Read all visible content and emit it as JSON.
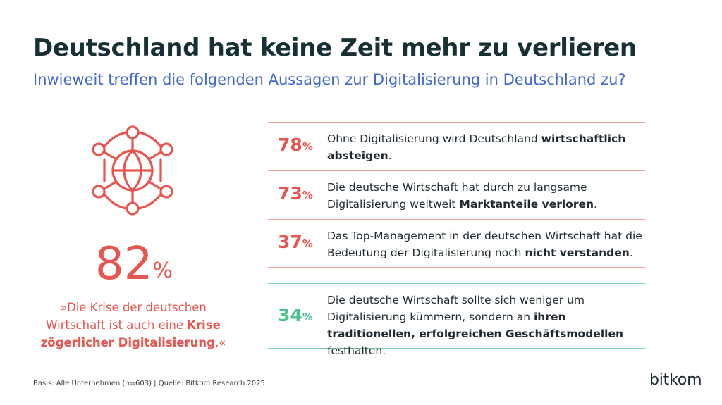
{
  "header": {
    "title": "Deutschland hat keine Zeit mehr zu verlieren",
    "subtitle": "Inwieweit treffen die folgenden Aussagen zur Digitalisierung in Deutschland zu?"
  },
  "hero": {
    "icon": "globe-network-icon",
    "value": "82",
    "unit": "%",
    "quote_1": "»Die Krise der deutschen Wirtschaft ist auch eine ",
    "quote_2": "Krise zögerlicher Digitalisierung",
    "quote_3": ".«"
  },
  "chart_data": {
    "type": "table",
    "unit": "%",
    "items": [
      {
        "value": 82,
        "text": "»Die Krise der deutschen Wirtschaft ist auch eine Krise zögerlicher Digitalisierung.«"
      },
      {
        "value": 78,
        "text": "Ohne Digitalisierung wird Deutschland wirtschaftlich absteigen."
      },
      {
        "value": 73,
        "text": "Die deutsche Wirtschaft hat durch zu langsame Digitalisierung weltweit Marktanteile verloren."
      },
      {
        "value": 37,
        "text": "Das Top-Management in der deutschen Wirtschaft hat die Bedeutung der Digitalisierung noch nicht verstanden."
      },
      {
        "value": 34,
        "text": "Die deutsche Wirtschaft sollte sich weniger um Digitalisierung kümmern, sondern an ihren traditionellen, erfolgreichen Geschäftsmodellen festhalten."
      }
    ]
  },
  "statements": [
    {
      "value": "78",
      "unit": "%",
      "a": "Ohne Digitalisierung wird Deutschland ",
      "b": "wirtschaftlich absteigen",
      "c": "."
    },
    {
      "value": "73",
      "unit": "%",
      "a": "Die deutsche Wirtschaft hat durch zu langsame Digitalisierung weltweit ",
      "b": "Marktanteile verloren",
      "c": "."
    },
    {
      "value": "37",
      "unit": "%",
      "a": "Das Top-Management in der deutschen Wirtschaft hat die Bedeutung der Digitalisierung noch ",
      "b": "nicht verstanden",
      "c": "."
    },
    {
      "value": "34",
      "unit": "%",
      "a": "Die deutsche Wirtschaft sollte sich weniger um Digitalisierung kümmern, sondern an ",
      "b": "ihren traditionellen, erfolgreichen Geschäftsmodellen",
      "c": " festhalten."
    }
  ],
  "colors": {
    "title": "#163035",
    "subtitle": "#3f67d1",
    "negative_accent": "#e8544e",
    "positive_accent": "#4ec191"
  },
  "footer": {
    "source": "Basis: Alle Unternehmen (n=603) | Quelle: Bitkom Research 2025",
    "logo": "bitkom"
  }
}
